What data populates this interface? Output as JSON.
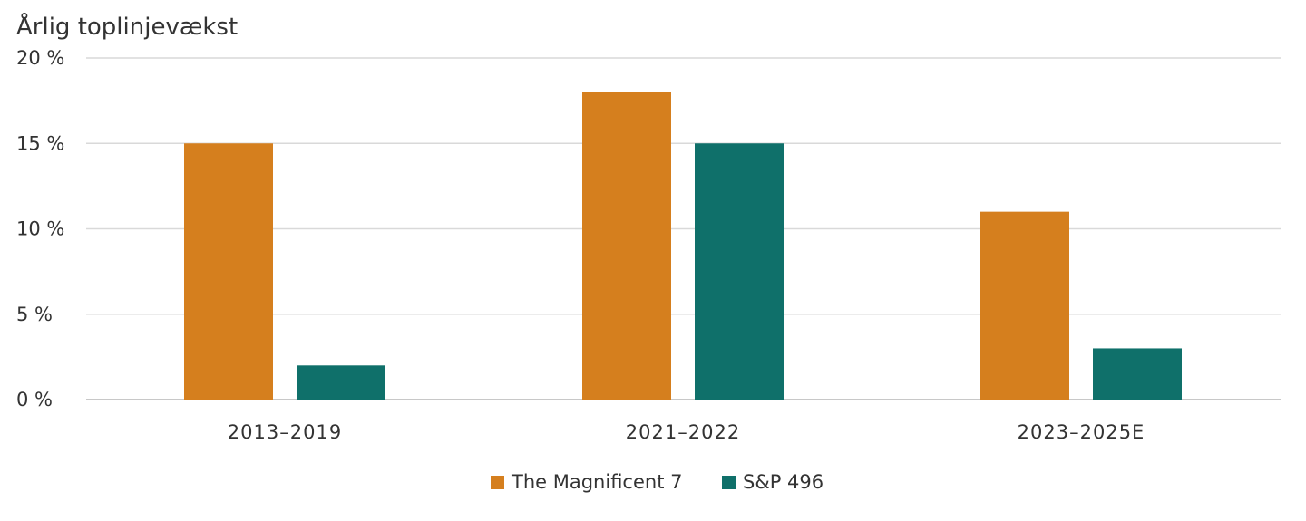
{
  "chart_data": {
    "type": "bar",
    "title": "Årlig toplinjevækst",
    "categories": [
      "2013–2019",
      "2021–2022",
      "2023–2025E"
    ],
    "series": [
      {
        "name": "The Magnificent 7",
        "values": [
          15,
          18,
          11
        ],
        "color": "#D57F1E"
      },
      {
        "name": "S&P 496",
        "values": [
          2,
          15,
          3
        ],
        "color": "#0F706A"
      }
    ],
    "ylim": [
      0,
      20
    ],
    "yticks": [
      0,
      5,
      10,
      15,
      20
    ],
    "ytick_labels": [
      "0 %",
      "5 %",
      "10 %",
      "15 %",
      "20 %"
    ],
    "xlabel": "",
    "ylabel": "",
    "grid": true,
    "legend": "bottom-center"
  }
}
